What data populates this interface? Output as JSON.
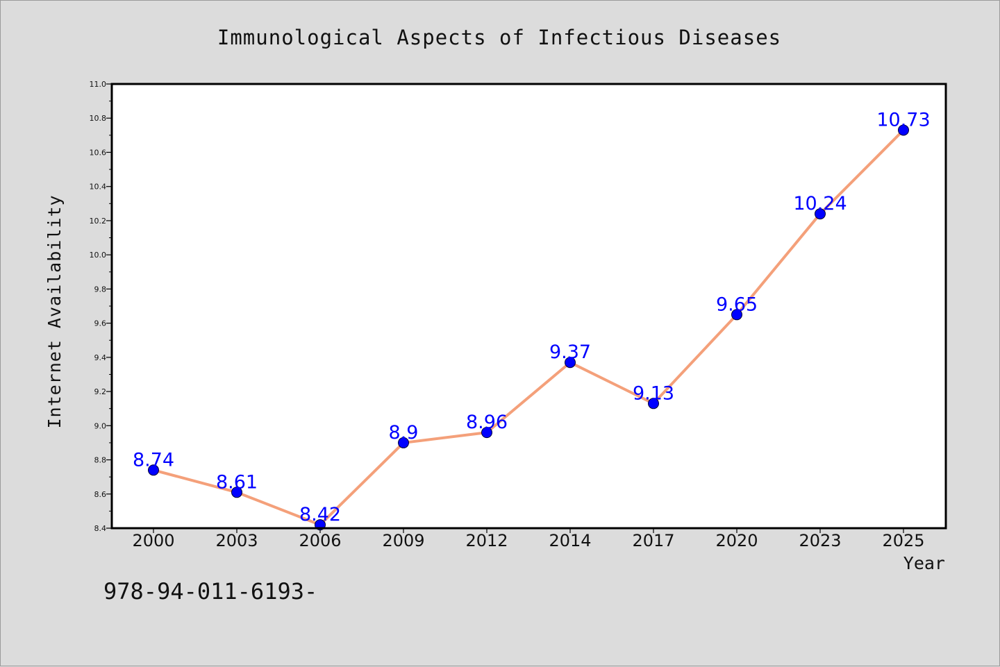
{
  "chart_data": {
    "type": "line",
    "title": "Immunological Aspects of Infectious Diseases",
    "xlabel": "Year",
    "ylabel": "Internet Availability",
    "categories": [
      "2000",
      "2003",
      "2006",
      "2009",
      "2012",
      "2014",
      "2017",
      "2020",
      "2023",
      "2025"
    ],
    "series": [
      {
        "values": [
          8.74,
          8.61,
          8.42,
          8.9,
          8.96,
          9.37,
          9.13,
          9.65,
          10.24,
          10.73
        ],
        "data_labels": [
          "8.74",
          "8.61",
          "8.42",
          "8.9",
          "8.96",
          "9.37",
          "9.13",
          "9.65",
          "10.24",
          "10.73"
        ]
      }
    ],
    "ylim": [
      8.4,
      11.0
    ],
    "yticks": [
      "8.4",
      "8.6",
      "8.8",
      "9.0",
      "9.2",
      "9.4",
      "9.6",
      "9.8",
      "10.0",
      "10.2",
      "10.4",
      "10.6",
      "10.8",
      "11.0"
    ],
    "grid": false,
    "legend": "none",
    "colors": {
      "line": "#f4a07a",
      "marker": "#0000ff",
      "data_label": "#0000ff",
      "plot_background": "#ffffff",
      "figure_background": "#dcdcdc"
    }
  },
  "footer": {
    "text": "978-94-011-6193-"
  }
}
